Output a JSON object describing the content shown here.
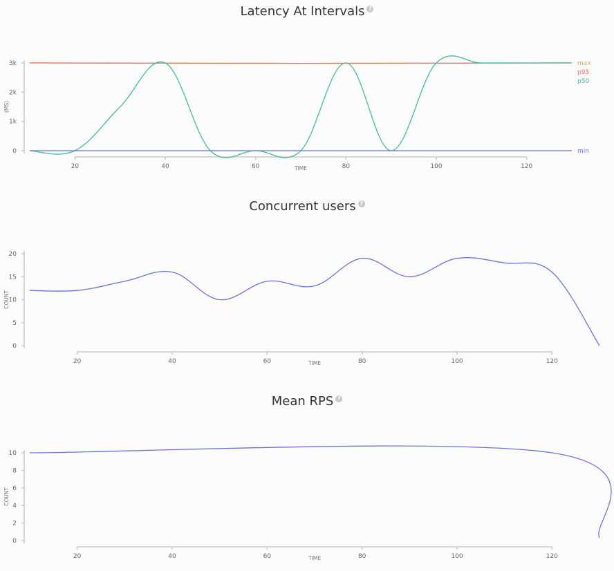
{
  "panels": [
    {
      "title": "Latency At Intervals",
      "help_icon": "question-circle-icon",
      "chart_data": {
        "type": "line",
        "title": "Latency At Intervals",
        "xlabel": "TIME",
        "ylabel": "(MS)",
        "xlim": [
          10,
          130
        ],
        "ylim": [
          0,
          3000
        ],
        "xticks": [
          20,
          40,
          60,
          80,
          100,
          120
        ],
        "yticks": [
          0,
          1000,
          2000,
          3000
        ],
        "ytick_labels": [
          "0",
          "1k",
          "2k",
          "3k"
        ],
        "legend_placement": "right",
        "grid": false,
        "series": [
          {
            "name": "max",
            "color": "#f0a35e",
            "x": [
              10,
              40,
              70,
              100,
              130
            ],
            "y": [
              3000,
              2990,
              2985,
              2990,
              3000
            ]
          },
          {
            "name": "p95",
            "color": "#e8705a",
            "x": [
              10,
              40,
              70,
              100,
              130
            ],
            "y": [
              3000,
              2990,
              2985,
              2990,
              3000
            ]
          },
          {
            "name": "p50",
            "color": "#3fbf8f",
            "x": [
              10,
              20,
              30,
              40,
              50,
              60,
              70,
              80,
              90,
              100,
              110,
              120,
              130
            ],
            "y": [
              0,
              0,
              1500,
              3000,
              0,
              0,
              0,
              3000,
              0,
              3000,
              3000,
              3000,
              3000
            ]
          },
          {
            "name": "min",
            "color": "#6a72e0",
            "x": [
              10,
              130
            ],
            "y": [
              0,
              0
            ]
          }
        ]
      }
    },
    {
      "title": "Concurrent users",
      "help_icon": "question-circle-icon",
      "chart_data": {
        "type": "line",
        "title": "Concurrent users",
        "xlabel": "TIME",
        "ylabel": "COUNT",
        "xlim": [
          10,
          130
        ],
        "ylim": [
          0,
          20
        ],
        "xticks": [
          20,
          40,
          60,
          80,
          100,
          120
        ],
        "yticks": [
          0,
          5,
          10,
          15,
          20
        ],
        "ytick_labels": [
          "0",
          "5",
          "10",
          "15",
          "20"
        ],
        "grid": false,
        "series": [
          {
            "color": "#6a72e0",
            "x": [
              10,
              20,
              30,
              40,
              50,
              60,
              70,
              80,
              90,
              100,
              110,
              120,
              130
            ],
            "y": [
              12,
              12,
              14,
              16,
              10,
              14,
              13,
              19,
              15,
              19,
              18,
              16,
              0
            ]
          }
        ]
      }
    },
    {
      "title": "Mean RPS",
      "help_icon": "question-circle-icon",
      "chart_data": {
        "type": "line",
        "title": "Mean RPS",
        "xlabel": "TIME",
        "ylabel": "COUNT",
        "xlim": [
          10,
          130
        ],
        "ylim": [
          0,
          10
        ],
        "xticks": [
          20,
          40,
          60,
          80,
          100,
          120
        ],
        "yticks": [
          0,
          2,
          4,
          6,
          8,
          10
        ],
        "ytick_labels": [
          "0",
          "2",
          "4",
          "6",
          "8",
          "10"
        ],
        "grid": false,
        "series": [
          {
            "color": "#6a72e0",
            "x": [
              10,
              120,
              130
            ],
            "y": [
              10,
              10,
              0.3
            ]
          }
        ]
      }
    }
  ]
}
